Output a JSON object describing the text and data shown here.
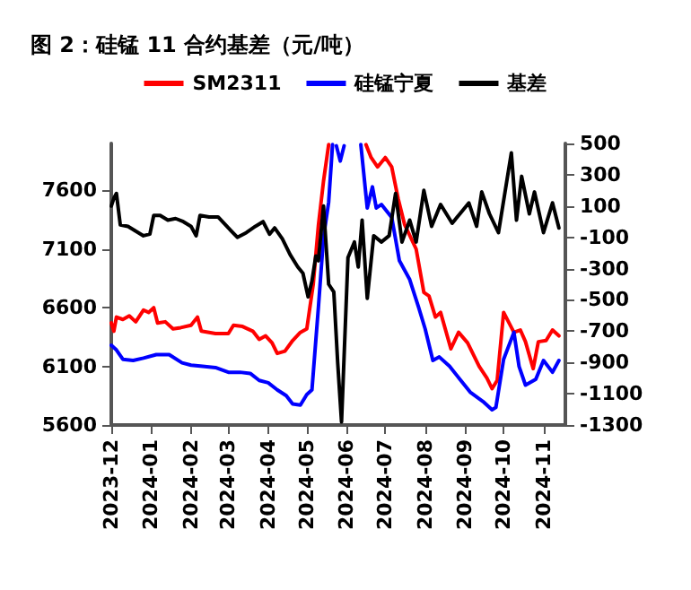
{
  "chart_data": {
    "type": "line",
    "title": "图 2：硅锰 11 合约基差（元/吨）",
    "xlim": [
      "2023-12-01",
      "2024-11-18"
    ],
    "xticks": [
      "2023-12",
      "2024-01",
      "2024-02",
      "2024-03",
      "2024-04",
      "2024-05",
      "2024-06",
      "2024-07",
      "2024-08",
      "2024-09",
      "2024-10",
      "2024-11"
    ],
    "ylim": [
      5600,
      8000
    ],
    "yticks": [
      5600,
      6100,
      6600,
      7100,
      7600
    ],
    "y2lim": [
      -1300,
      500
    ],
    "y2ticks": [
      -1300,
      -1100,
      -900,
      -700,
      -500,
      -300,
      -100,
      100,
      300,
      500
    ],
    "grid": false,
    "legend": "top",
    "marker": "none",
    "line_style": "solid",
    "series": [
      {
        "name": "SM2311",
        "color": "#ff0000",
        "x": [
          "2023-12-01",
          "2023-12-03",
          "2023-12-05",
          "2023-12-10",
          "2023-12-15",
          "2023-12-20",
          "2023-12-26",
          "2023-12-30",
          "2024-01-03",
          "2024-01-06",
          "2024-01-12",
          "2024-01-18",
          "2024-01-24",
          "2024-02-01",
          "2024-02-06",
          "2024-02-09",
          "2024-02-20",
          "2024-03-01",
          "2024-03-05",
          "2024-03-12",
          "2024-03-20",
          "2024-03-25",
          "2024-03-30",
          "2024-04-04",
          "2024-04-08",
          "2024-04-14",
          "2024-04-20",
          "2024-04-26",
          "2024-05-01",
          "2024-05-06",
          "2024-05-10",
          "2024-05-14",
          "2024-05-18",
          "2024-05-25",
          "2024-06-16",
          "2024-06-20",
          "2024-06-25",
          "2024-07-01",
          "2024-07-06",
          "2024-07-11",
          "2024-07-16",
          "2024-07-25",
          "2024-07-31",
          "2024-08-04",
          "2024-08-09",
          "2024-08-13",
          "2024-08-21",
          "2024-08-27",
          "2024-09-03",
          "2024-09-12",
          "2024-09-18",
          "2024-09-22",
          "2024-09-26",
          "2024-10-01",
          "2024-10-09",
          "2024-10-14",
          "2024-10-18",
          "2024-10-24",
          "2024-10-28",
          "2024-11-03",
          "2024-11-08",
          "2024-11-13"
        ],
        "values": [
          6470,
          6400,
          6520,
          6500,
          6530,
          6480,
          6580,
          6560,
          6600,
          6470,
          6480,
          6420,
          6430,
          6450,
          6520,
          6400,
          6380,
          6380,
          6450,
          6440,
          6400,
          6330,
          6360,
          6300,
          6210,
          6230,
          6320,
          6390,
          6420,
          6800,
          7300,
          7680,
          7990,
          null,
          7990,
          7880,
          7800,
          7880,
          7800,
          7530,
          7310,
          7100,
          6730,
          6700,
          6520,
          6560,
          6250,
          6390,
          6300,
          6100,
          6000,
          5910,
          5980,
          6560,
          6390,
          6410,
          6310,
          6080,
          6310,
          6320,
          6410,
          6360
        ]
      },
      {
        "name": "硅锰宁夏",
        "color": "#0000ff",
        "x": [
          "2023-12-01",
          "2023-12-05",
          "2023-12-10",
          "2023-12-18",
          "2023-12-26",
          "2024-01-05",
          "2024-01-15",
          "2024-01-25",
          "2024-02-01",
          "2024-02-10",
          "2024-02-20",
          "2024-03-01",
          "2024-03-10",
          "2024-03-18",
          "2024-03-25",
          "2024-04-01",
          "2024-04-08",
          "2024-04-15",
          "2024-04-20",
          "2024-04-26",
          "2024-05-01",
          "2024-05-05",
          "2024-05-10",
          "2024-05-14",
          "2024-05-18",
          "2024-05-21",
          "2024-05-23",
          "2024-05-24",
          "2024-05-27",
          "2024-05-30",
          "2024-06-03",
          "2024-06-12",
          "2024-06-17",
          "2024-06-21",
          "2024-06-24",
          "2024-06-28",
          "2024-07-06",
          "2024-07-12",
          "2024-07-20",
          "2024-07-27",
          "2024-08-01",
          "2024-08-07",
          "2024-08-12",
          "2024-08-20",
          "2024-08-28",
          "2024-09-05",
          "2024-09-15",
          "2024-09-22",
          "2024-09-25",
          "2024-10-01",
          "2024-10-09",
          "2024-10-13",
          "2024-10-18",
          "2024-10-26",
          "2024-11-01",
          "2024-11-08",
          "2024-11-13"
        ],
        "values": [
          6280,
          6240,
          6160,
          6150,
          6170,
          6200,
          6200,
          6130,
          6110,
          6100,
          6090,
          6050,
          6050,
          6040,
          5980,
          5960,
          5900,
          5850,
          5780,
          5770,
          5860,
          5900,
          6600,
          7200,
          7500,
          7990,
          null,
          7980,
          7850,
          7980,
          null,
          7990,
          7450,
          7630,
          7450,
          7480,
          7370,
          7000,
          6840,
          6600,
          6420,
          6150,
          6180,
          6100,
          5990,
          5880,
          5800,
          5730,
          5750,
          6160,
          6390,
          6100,
          5940,
          5990,
          6150,
          6050,
          6150
        ]
      },
      {
        "name": "基差",
        "color": "#000000",
        "axis": "y2",
        "x": [
          "2023-12-01",
          "2023-12-03",
          "2023-12-05",
          "2023-12-08",
          "2023-12-14",
          "2023-12-20",
          "2023-12-26",
          "2023-12-31",
          "2024-01-03",
          "2024-01-08",
          "2024-01-14",
          "2024-01-20",
          "2024-01-26",
          "2024-02-01",
          "2024-02-05",
          "2024-02-08",
          "2024-02-15",
          "2024-02-22",
          "2024-03-01",
          "2024-03-08",
          "2024-03-15",
          "2024-03-22",
          "2024-03-28",
          "2024-04-02",
          "2024-04-06",
          "2024-04-12",
          "2024-04-18",
          "2024-04-24",
          "2024-04-28",
          "2024-05-02",
          "2024-05-05",
          "2024-05-08",
          "2024-05-10",
          "2024-05-14",
          "2024-05-18",
          "2024-05-22",
          "2024-05-25",
          "2024-05-28",
          "2024-06-02",
          "2024-06-07",
          "2024-06-10",
          "2024-06-13",
          "2024-06-17",
          "2024-06-22",
          "2024-06-28",
          "2024-07-04",
          "2024-07-09",
          "2024-07-14",
          "2024-07-20",
          "2024-07-25",
          "2024-07-31",
          "2024-08-06",
          "2024-08-13",
          "2024-08-22",
          "2024-08-28",
          "2024-09-04",
          "2024-09-10",
          "2024-09-14",
          "2024-09-20",
          "2024-09-27",
          "2024-10-07",
          "2024-10-11",
          "2024-10-15",
          "2024-10-21",
          "2024-10-25",
          "2024-11-01",
          "2024-11-08",
          "2024-11-13"
        ],
        "values": [
          100,
          150,
          180,
          -20,
          -30,
          -60,
          -90,
          -80,
          40,
          40,
          10,
          20,
          0,
          -30,
          -90,
          40,
          30,
          30,
          -40,
          -100,
          -70,
          -30,
          0,
          -80,
          -40,
          -110,
          -210,
          -290,
          -330,
          -480,
          -380,
          -220,
          -250,
          100,
          -400,
          -450,
          -900,
          -1280,
          -230,
          -130,
          -290,
          10,
          -490,
          -90,
          -130,
          -90,
          180,
          -130,
          10,
          -130,
          200,
          -30,
          110,
          -10,
          50,
          120,
          -30,
          190,
          50,
          -70,
          440,
          10,
          290,
          50,
          190,
          -70,
          120,
          -40
        ]
      }
    ]
  }
}
